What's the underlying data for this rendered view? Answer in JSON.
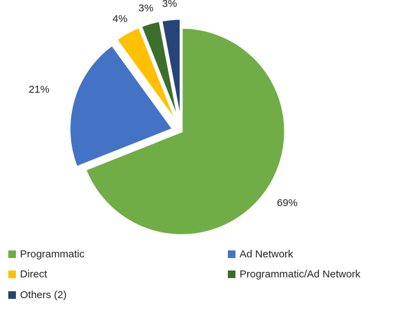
{
  "chart_data": {
    "type": "pie",
    "categories": [
      "Programmatic",
      "Ad Network",
      "Direct",
      "Programmatic/Ad Network",
      "Others (2)"
    ],
    "values": [
      69,
      21,
      4,
      3,
      3
    ],
    "value_labels": [
      "69%",
      "21%",
      "4%",
      "3%",
      "3%"
    ],
    "colors": [
      "#70ad47",
      "#4472c4",
      "#ffc000",
      "#3b6e2a",
      "#264478"
    ],
    "legend": "bottom"
  }
}
